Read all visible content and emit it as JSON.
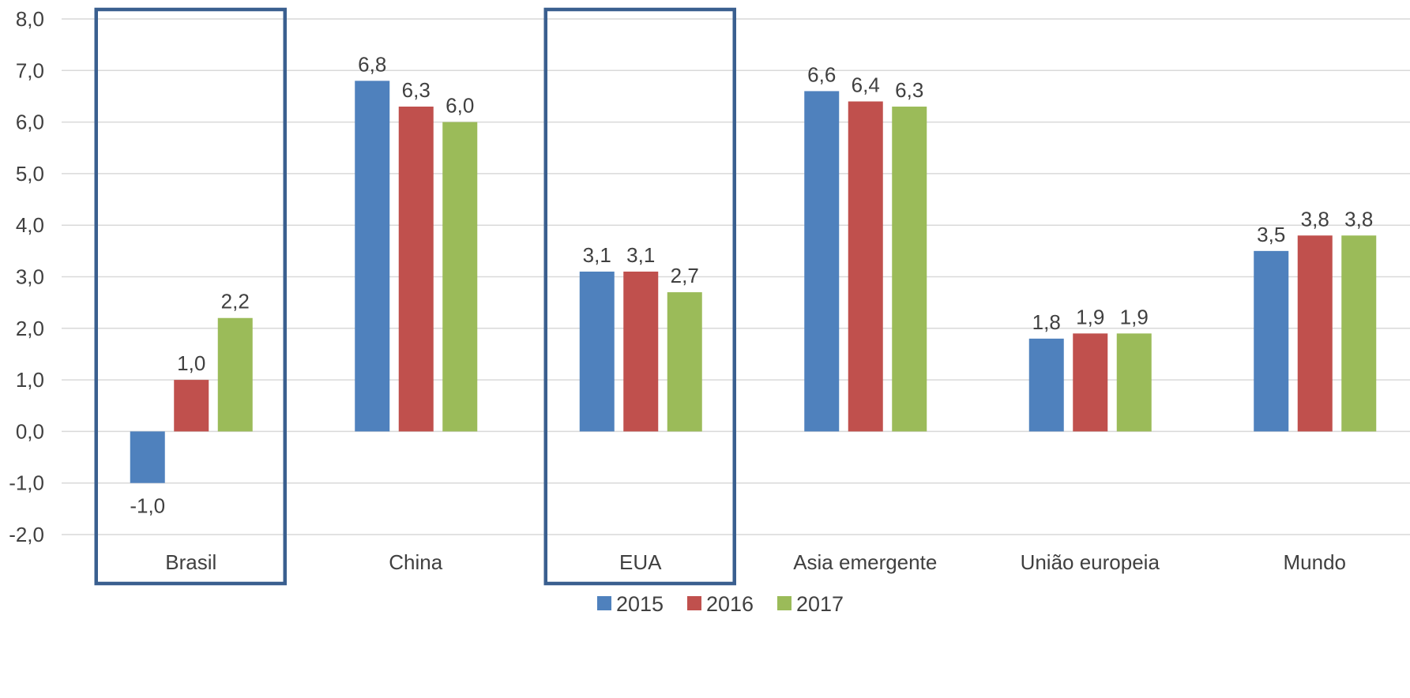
{
  "chart_data": {
    "type": "bar",
    "categories": [
      "Brasil",
      "China",
      "EUA",
      "Asia emergente",
      "União europeia",
      "Mundo"
    ],
    "series": [
      {
        "name": "2015",
        "color": "#4F81BD",
        "values": [
          -1.0,
          6.8,
          3.1,
          6.6,
          1.8,
          3.5
        ],
        "labels": [
          "-1,0",
          "6,8",
          "3,1",
          "6,6",
          "1,8",
          "3,5"
        ]
      },
      {
        "name": "2016",
        "color": "#C0504D",
        "values": [
          1.0,
          6.3,
          3.1,
          6.4,
          1.9,
          3.8
        ],
        "labels": [
          "1,0",
          "6,3",
          "3,1",
          "6,4",
          "1,9",
          "3,8"
        ]
      },
      {
        "name": "2017",
        "color": "#9BBB59",
        "values": [
          2.2,
          6.0,
          2.7,
          6.3,
          1.9,
          3.8
        ],
        "labels": [
          "2,2",
          "6,0",
          "2,7",
          "6,3",
          "1,9",
          "3,8"
        ]
      }
    ],
    "ylim": [
      -2.0,
      8.0
    ],
    "yticks": [
      8.0,
      7.0,
      6.0,
      5.0,
      4.0,
      3.0,
      2.0,
      1.0,
      0.0,
      -1.0,
      -2.0
    ],
    "ytick_labels": [
      "8,0",
      "7,0",
      "6,0",
      "5,0",
      "4,0",
      "3,0",
      "2,0",
      "1,0",
      "0,0",
      "-1,0",
      "-2,0"
    ],
    "grid": true,
    "legend_position": "bottom",
    "highlighted_categories": [
      "Brasil",
      "EUA"
    ],
    "highlight_color": "#3A5F8F",
    "gridline_color": "#D9D9D9",
    "text_color": "#404040"
  }
}
